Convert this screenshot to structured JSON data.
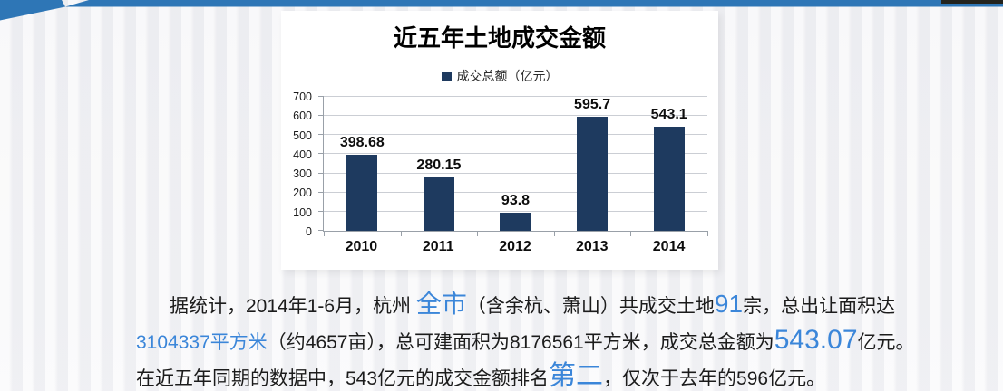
{
  "colors": {
    "ribbon_blue": "#2e76b6",
    "bar_navy": "#1e3a5f",
    "blue_text": "#3b86d9",
    "photo_sliver": "#23231d",
    "panel_bg": "#ffffff"
  },
  "chart_data": {
    "type": "bar",
    "title": "近五年土地成交金额",
    "legend": [
      "成交总额（亿元）"
    ],
    "legend_position": "top",
    "categories": [
      "2010",
      "2011",
      "2012",
      "2013",
      "2014"
    ],
    "values": [
      398.68,
      280.15,
      93.8,
      595.7,
      543.1
    ],
    "value_labels": [
      "398.68",
      "280.15",
      "93.8",
      "595.7",
      "543.1"
    ],
    "xlabel": "",
    "ylabel": "",
    "ylim": [
      0,
      700
    ],
    "yticks": [
      0,
      100,
      200,
      300,
      400,
      500,
      600,
      700
    ],
    "grid": true,
    "bar_color": "#1e3a5f"
  },
  "paragraph": {
    "lines": [
      [
        {
          "t": "据统计，2014年1-6月，杭州 ",
          "s": "n"
        },
        {
          "t": "全市",
          "s": "blg"
        },
        {
          "t": "（含余杭、萧山）共成交土地",
          "s": "n"
        },
        {
          "t": "91",
          "s": "blg"
        },
        {
          "t": "宗，总出让面积达",
          "s": "n"
        }
      ],
      [
        {
          "t": "3104337平方米",
          "s": "b"
        },
        {
          "t": "（约4657亩），总可建面积为8176561平方米，成交总金额为",
          "s": "n"
        },
        {
          "t": "543.07",
          "s": "bxl"
        },
        {
          "t": "亿元。",
          "s": "n"
        }
      ],
      [
        {
          "t": "在近五年同期的数据中，543亿元的成交金额排名",
          "s": "n"
        },
        {
          "t": "第二",
          "s": "bxl"
        },
        {
          "t": "，仅次于去年的596亿元。",
          "s": "n"
        }
      ]
    ]
  }
}
